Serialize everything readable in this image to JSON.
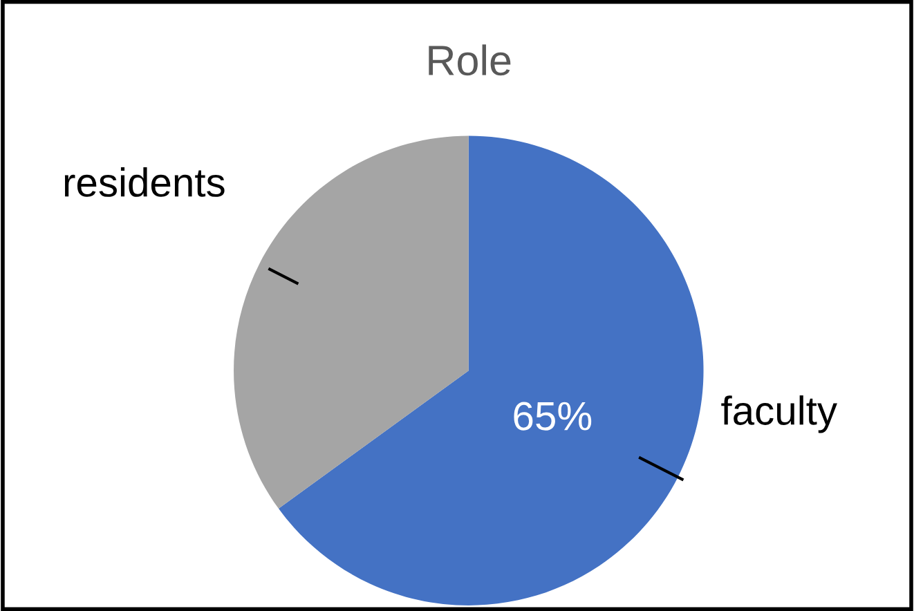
{
  "chart_data": {
    "type": "pie",
    "title": "Role",
    "categories": [
      "faculty",
      "residents"
    ],
    "values": [
      65,
      35
    ],
    "colors": [
      "#4472c4",
      "#a5a5a5"
    ],
    "value_labels": [
      "65%",
      null
    ],
    "legend": false
  }
}
